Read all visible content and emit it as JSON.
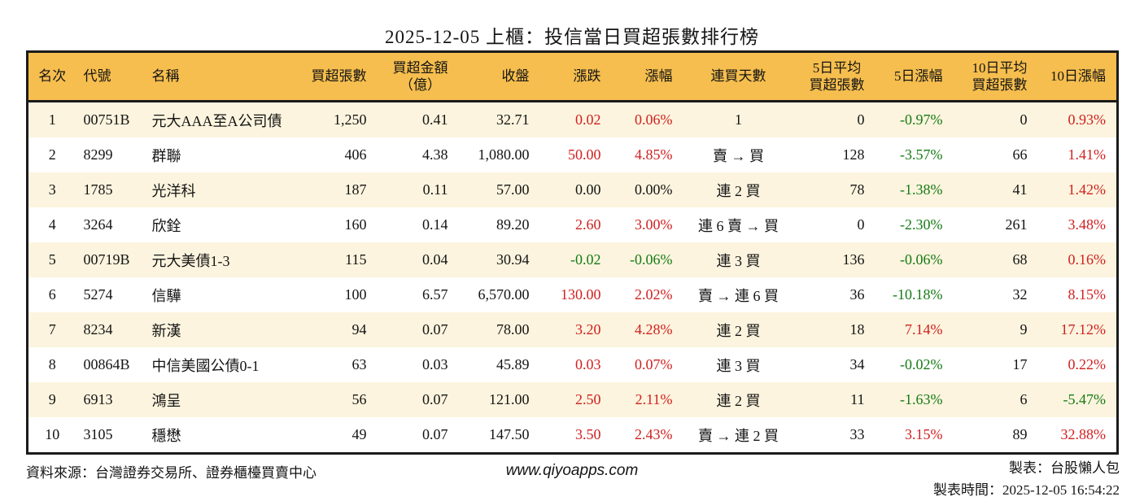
{
  "title": "2025-12-05 上櫃：投信當日買超張數排行榜",
  "colors": {
    "header_bg": "#f6be4e",
    "row_stripe": "#fcf4de",
    "up_red": "#d02020",
    "down_green": "#157a15",
    "border": "#1b1b1b"
  },
  "table": {
    "headers": [
      {
        "key": "rank",
        "lines": [
          "名次"
        ]
      },
      {
        "key": "code",
        "lines": [
          "代號"
        ]
      },
      {
        "key": "name",
        "lines": [
          "名稱"
        ]
      },
      {
        "key": "volume",
        "lines": [
          "買超張數"
        ]
      },
      {
        "key": "amount",
        "lines": [
          "買超金額",
          "（億）"
        ]
      },
      {
        "key": "close",
        "lines": [
          "收盤"
        ]
      },
      {
        "key": "change",
        "lines": [
          "漲跌"
        ]
      },
      {
        "key": "change_pct",
        "lines": [
          "漲幅"
        ]
      },
      {
        "key": "streak",
        "lines": [
          "連買天數"
        ]
      },
      {
        "key": "avg5",
        "lines": [
          "5日平均",
          "買超張數"
        ]
      },
      {
        "key": "pct5",
        "lines": [
          "5日漲幅"
        ]
      },
      {
        "key": "avg10",
        "lines": [
          "10日平均",
          "買超張數"
        ]
      },
      {
        "key": "pct10",
        "lines": [
          "10日漲幅"
        ]
      }
    ],
    "rows": [
      {
        "rank": "1",
        "code": "00751B",
        "name": "元大AAA至A公司債",
        "volume": "1,250",
        "amount": "0.41",
        "close": "32.71",
        "change": {
          "v": "0.02",
          "c": "red"
        },
        "change_pct": {
          "v": "0.06%",
          "c": "red"
        },
        "streak": "1",
        "avg5": "0",
        "pct5": {
          "v": "-0.97%",
          "c": "green"
        },
        "avg10": "0",
        "pct10": {
          "v": "0.93%",
          "c": "red"
        }
      },
      {
        "rank": "2",
        "code": "8299",
        "name": "群聯",
        "volume": "406",
        "amount": "4.38",
        "close": "1,080.00",
        "change": {
          "v": "50.00",
          "c": "red"
        },
        "change_pct": {
          "v": "4.85%",
          "c": "red"
        },
        "streak": "賣 → 買",
        "avg5": "128",
        "pct5": {
          "v": "-3.57%",
          "c": "green"
        },
        "avg10": "66",
        "pct10": {
          "v": "1.41%",
          "c": "red"
        }
      },
      {
        "rank": "3",
        "code": "1785",
        "name": "光洋科",
        "volume": "187",
        "amount": "0.11",
        "close": "57.00",
        "change": "0.00",
        "change_pct": "0.00%",
        "streak": "連 2 買",
        "avg5": "78",
        "pct5": {
          "v": "-1.38%",
          "c": "green"
        },
        "avg10": "41",
        "pct10": {
          "v": "1.42%",
          "c": "red"
        }
      },
      {
        "rank": "4",
        "code": "3264",
        "name": "欣銓",
        "volume": "160",
        "amount": "0.14",
        "close": "89.20",
        "change": {
          "v": "2.60",
          "c": "red"
        },
        "change_pct": {
          "v": "3.00%",
          "c": "red"
        },
        "streak": "連 6 賣 → 買",
        "avg5": "0",
        "pct5": {
          "v": "-2.30%",
          "c": "green"
        },
        "avg10": "261",
        "pct10": {
          "v": "3.48%",
          "c": "red"
        }
      },
      {
        "rank": "5",
        "code": "00719B",
        "name": "元大美債1-3",
        "volume": "115",
        "amount": "0.04",
        "close": "30.94",
        "change": {
          "v": "-0.02",
          "c": "green"
        },
        "change_pct": {
          "v": "-0.06%",
          "c": "green"
        },
        "streak": "連 3 買",
        "avg5": "136",
        "pct5": {
          "v": "-0.06%",
          "c": "green"
        },
        "avg10": "68",
        "pct10": {
          "v": "0.16%",
          "c": "red"
        }
      },
      {
        "rank": "6",
        "code": "5274",
        "name": "信驊",
        "volume": "100",
        "amount": "6.57",
        "close": "6,570.00",
        "change": {
          "v": "130.00",
          "c": "red"
        },
        "change_pct": {
          "v": "2.02%",
          "c": "red"
        },
        "streak": "賣 → 連 6 買",
        "avg5": "36",
        "pct5": {
          "v": "-10.18%",
          "c": "green"
        },
        "avg10": "32",
        "pct10": {
          "v": "8.15%",
          "c": "red"
        }
      },
      {
        "rank": "7",
        "code": "8234",
        "name": "新漢",
        "volume": "94",
        "amount": "0.07",
        "close": "78.00",
        "change": {
          "v": "3.20",
          "c": "red"
        },
        "change_pct": {
          "v": "4.28%",
          "c": "red"
        },
        "streak": "連 2 買",
        "avg5": "18",
        "pct5": {
          "v": "7.14%",
          "c": "red"
        },
        "avg10": "9",
        "pct10": {
          "v": "17.12%",
          "c": "red"
        }
      },
      {
        "rank": "8",
        "code": "00864B",
        "name": "中信美國公債0-1",
        "volume": "63",
        "amount": "0.03",
        "close": "45.89",
        "change": {
          "v": "0.03",
          "c": "red"
        },
        "change_pct": {
          "v": "0.07%",
          "c": "red"
        },
        "streak": "連 3 買",
        "avg5": "34",
        "pct5": {
          "v": "-0.02%",
          "c": "green"
        },
        "avg10": "17",
        "pct10": {
          "v": "0.22%",
          "c": "red"
        }
      },
      {
        "rank": "9",
        "code": "6913",
        "name": "鴻呈",
        "volume": "56",
        "amount": "0.07",
        "close": "121.00",
        "change": {
          "v": "2.50",
          "c": "red"
        },
        "change_pct": {
          "v": "2.11%",
          "c": "red"
        },
        "streak": "連 2 買",
        "avg5": "11",
        "pct5": {
          "v": "-1.63%",
          "c": "green"
        },
        "avg10": "6",
        "pct10": {
          "v": "-5.47%",
          "c": "green"
        }
      },
      {
        "rank": "10",
        "code": "3105",
        "name": "穩懋",
        "volume": "49",
        "amount": "0.07",
        "close": "147.50",
        "change": {
          "v": "3.50",
          "c": "red"
        },
        "change_pct": {
          "v": "2.43%",
          "c": "red"
        },
        "streak": "賣 → 連 2 買",
        "avg5": "33",
        "pct5": {
          "v": "3.15%",
          "c": "red"
        },
        "avg10": "89",
        "pct10": {
          "v": "32.88%",
          "c": "red"
        }
      }
    ]
  },
  "footer": {
    "source": "資料來源：台灣證券交易所、證券櫃檯買賣中心",
    "url": "www.qiyoapps.com",
    "maker": "製表：台股懶人包",
    "timestamp": "製表時間：2025-12-05 16:54:22"
  }
}
